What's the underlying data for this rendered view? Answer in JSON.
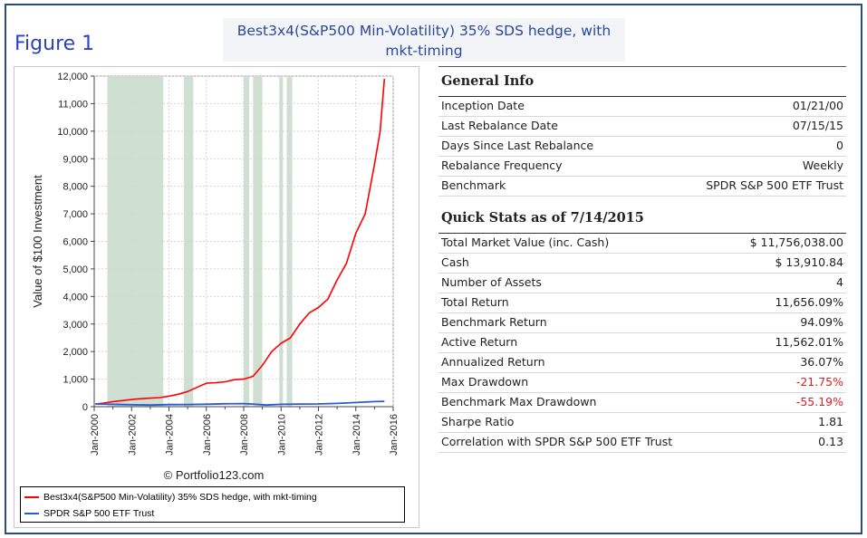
{
  "figure_label": "Figure 1",
  "header": {
    "title_line1": "Best3x4(S&P500 Min-Volatility) 35% SDS hedge, with",
    "title_line2": "mkt-timing"
  },
  "chart_data": {
    "type": "line",
    "ylabel": "Value of $100 Investment",
    "watermark": "© Portfolio123.com",
    "ylim": [
      0,
      12000
    ],
    "yticks": [
      0,
      1000,
      2000,
      3000,
      4000,
      5000,
      6000,
      7000,
      8000,
      9000,
      10000,
      11000,
      12000
    ],
    "ytick_labels": [
      "0",
      "1,000",
      "2,000",
      "3,000",
      "4,000",
      "5,000",
      "6,000",
      "7,000",
      "8,000",
      "9,000",
      "10,000",
      "11,000",
      "12,000"
    ],
    "xlim": [
      2000.0,
      2016.0
    ],
    "xticks": [
      2000,
      2002,
      2004,
      2006,
      2008,
      2010,
      2012,
      2014,
      2016
    ],
    "xtick_labels": [
      "Jan-2000",
      "Jan-2002",
      "Jan-2004",
      "Jan-2006",
      "Jan-2008",
      "Jan-2010",
      "Jan-2012",
      "Jan-2014",
      "Jan-2016"
    ],
    "grid": true,
    "shaded_regions": [
      [
        2000.7,
        2003.7
      ],
      [
        2004.8,
        2005.3
      ],
      [
        2008.0,
        2008.3
      ],
      [
        2008.5,
        2009.0
      ],
      [
        2009.9,
        2010.1
      ],
      [
        2010.3,
        2010.6
      ]
    ],
    "shade_color": "#cfe0d2",
    "series": [
      {
        "name": "Best3x4(S&P500 Min-Volatility) 35% SDS hedge, with mkt-timing",
        "color": "#ff0000",
        "x": [
          2000.06,
          2000.5,
          2001.0,
          2001.5,
          2002.0,
          2002.5,
          2003.0,
          2003.5,
          2004.0,
          2004.5,
          2005.0,
          2005.5,
          2006.0,
          2006.5,
          2007.0,
          2007.5,
          2008.0,
          2008.5,
          2009.0,
          2009.5,
          2010.0,
          2010.5,
          2011.0,
          2011.5,
          2012.0,
          2012.5,
          2013.0,
          2013.5,
          2014.0,
          2014.5,
          2015.0,
          2015.3,
          2015.53
        ],
        "y": [
          100,
          130,
          180,
          220,
          260,
          290,
          310,
          330,
          380,
          450,
          550,
          700,
          850,
          870,
          900,
          980,
          1000,
          1100,
          1500,
          2000,
          2300,
          2500,
          3000,
          3400,
          3600,
          3900,
          4600,
          5200,
          6300,
          7000,
          8800,
          10000,
          11900
        ]
      },
      {
        "name": "SPDR S&P 500 ETF Trust",
        "color": "#2a5bd7",
        "x": [
          2000.06,
          2001.0,
          2002.0,
          2003.0,
          2004.0,
          2005.0,
          2006.0,
          2007.0,
          2008.0,
          2008.5,
          2009.2,
          2010.0,
          2011.0,
          2012.0,
          2013.0,
          2014.0,
          2015.0,
          2015.53
        ],
        "y": [
          100,
          85,
          70,
          60,
          75,
          80,
          90,
          105,
          110,
          95,
          60,
          85,
          95,
          100,
          120,
          150,
          185,
          194
        ]
      }
    ]
  },
  "legend": {
    "item1": "Best3x4(S&P500 Min-Volatility) 35% SDS hedge, with mkt-timing",
    "item2": "SPDR S&P 500 ETF Trust"
  },
  "general_info": {
    "title": "General Info",
    "rows": [
      {
        "label": "Inception Date",
        "value": "01/21/00"
      },
      {
        "label": "Last Rebalance Date",
        "value": "07/15/15"
      },
      {
        "label": "Days Since Last Rebalance",
        "value": "0"
      },
      {
        "label": "Rebalance Frequency",
        "value": "Weekly"
      },
      {
        "label": "Benchmark",
        "value": "SPDR S&P 500 ETF Trust"
      }
    ]
  },
  "quick_stats": {
    "title": "Quick Stats as of 7/14/2015",
    "rows": [
      {
        "label": "Total Market Value (inc. Cash)",
        "value": "$ 11,756,038.00"
      },
      {
        "label": "Cash",
        "value": "$ 13,910.84"
      },
      {
        "label": "Number of Assets",
        "value": "4"
      },
      {
        "label": "Total Return",
        "value": "11,656.09%"
      },
      {
        "label": "Benchmark Return",
        "value": "94.09%"
      },
      {
        "label": "Active Return",
        "value": "11,562.01%"
      },
      {
        "label": "Annualized Return",
        "value": "36.07%"
      },
      {
        "label": "Max Drawdown",
        "value": "-21.75%"
      },
      {
        "label": "Benchmark Max Drawdown",
        "value": "-55.19%"
      },
      {
        "label": "Sharpe Ratio",
        "value": "1.81"
      },
      {
        "label": "Correlation with SPDR S&P 500 ETF Trust",
        "value": "0.13"
      }
    ]
  },
  "colors": {
    "frame": "#2c4d7c",
    "title_text": "#27489c",
    "negative": "#e02020"
  }
}
